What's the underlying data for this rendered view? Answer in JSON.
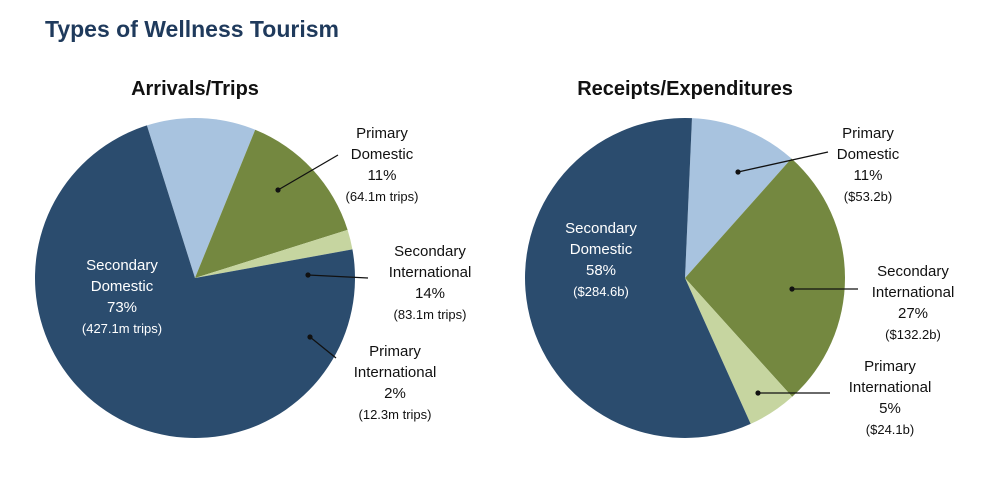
{
  "page_title": "Types of Wellness Tourism",
  "colors": {
    "secondary_domestic": "#2b4c6e",
    "primary_domestic": "#a8c3df",
    "secondary_international": "#748840",
    "primary_international": "#c6d5a0",
    "text_dark": "#111111",
    "text_light": "#ffffff"
  },
  "chart_data": [
    {
      "type": "pie",
      "title": "Arrivals/Trips",
      "slices": [
        {
          "label": "Primary Domestic",
          "value": 11,
          "display_value": "11%",
          "detail": "(64.1m trips)"
        },
        {
          "label": "Secondary International",
          "value": 14,
          "display_value": "14%",
          "detail": "(83.1m trips)"
        },
        {
          "label": "Primary International",
          "value": 2,
          "display_value": "2%",
          "detail": "(12.3m trips)"
        },
        {
          "label": "Secondary Domestic",
          "value": 73,
          "display_value": "73%",
          "detail": "(427.1m trips)"
        }
      ]
    },
    {
      "type": "pie",
      "title": "Receipts/Expenditures",
      "slices": [
        {
          "label": "Primary Domestic",
          "value": 11,
          "display_value": "11%",
          "detail": "($53.2b)"
        },
        {
          "label": "Secondary International",
          "value": 27,
          "display_value": "27%",
          "detail": "($132.2b)"
        },
        {
          "label": "Primary International",
          "value": 5,
          "display_value": "5%",
          "detail": "($24.1b)"
        },
        {
          "label": "Secondary Domestic",
          "value": 58,
          "display_value": "58%",
          "detail": "($284.6b)"
        }
      ]
    }
  ]
}
